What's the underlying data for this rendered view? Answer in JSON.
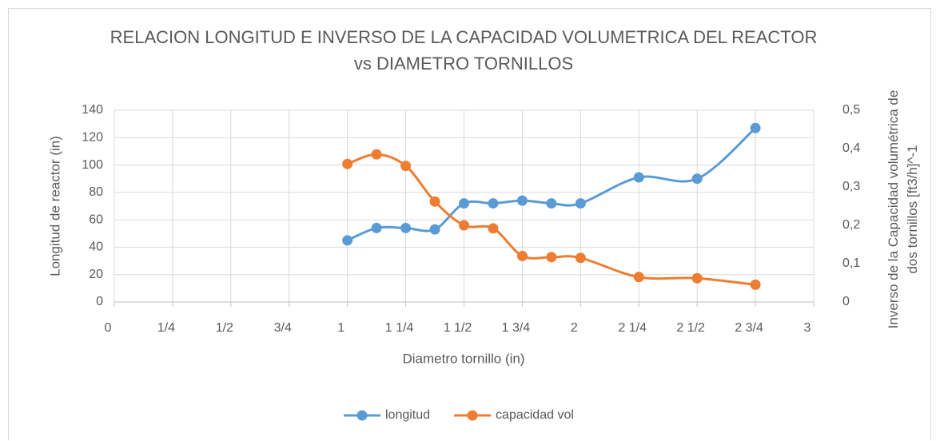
{
  "chart_data": {
    "type": "line",
    "title": "RELACION LONGITUD E INVERSO DE LA CAPACIDAD VOLUMETRICA DEL REACTOR vs DIAMETRO TORNILLOS",
    "xlabel": "Diametro tornillo (in)",
    "ylabel": "Longitud de reactor (in)",
    "y2label": "Inverso de  la Capacidad volumétrica de dos tornillos [ft3/h]^-1",
    "x": [
      1,
      1.125,
      1.25,
      1.375,
      1.5,
      1.625,
      1.75,
      1.875,
      2,
      2.25,
      2.5,
      2.75
    ],
    "series": [
      {
        "name": "longitud",
        "color": "#5b9bd5",
        "values": [
          45,
          54,
          54,
          53,
          72,
          72,
          74,
          72,
          72,
          91,
          90,
          127
        ]
      },
      {
        "name": "capacidad vol",
        "color": "#ed7d31",
        "axis": "y2",
        "values": [
          0.36,
          0.385,
          0.355,
          0.262,
          0.2,
          0.192,
          0.12,
          0.117,
          0.115,
          0.065,
          0.062,
          0.045
        ]
      }
    ],
    "xlim": [
      0,
      3
    ],
    "xticks": [
      0,
      {
        "value": 0.25,
        "label": "1/4"
      },
      {
        "value": 0.5,
        "label": "1/2"
      },
      {
        "value": 0.75,
        "label": "3/4"
      },
      1,
      {
        "value": 1.25,
        "label": "1 1/4"
      },
      {
        "value": 1.5,
        "label": "1 1/2"
      },
      {
        "value": 1.75,
        "label": "1 3/4"
      },
      2,
      {
        "value": 2.25,
        "label": "2 1/4"
      },
      {
        "value": 2.5,
        "label": "2 1/2"
      },
      {
        "value": 2.75,
        "label": "2 3/4"
      },
      3
    ],
    "ylim": [
      0,
      140
    ],
    "yticks": [
      0,
      20,
      40,
      60,
      80,
      100,
      120,
      140
    ],
    "y2lim": [
      0,
      0.5
    ],
    "y2ticks": [
      0,
      {
        "value": 0.1,
        "label": "0,1"
      },
      {
        "value": 0.2,
        "label": "0,2"
      },
      {
        "value": 0.3,
        "label": "0,3"
      },
      {
        "value": 0.4,
        "label": "0,4"
      },
      {
        "value": 0.5,
        "label": "0,5"
      }
    ],
    "grid": true,
    "legend": "bottom"
  }
}
